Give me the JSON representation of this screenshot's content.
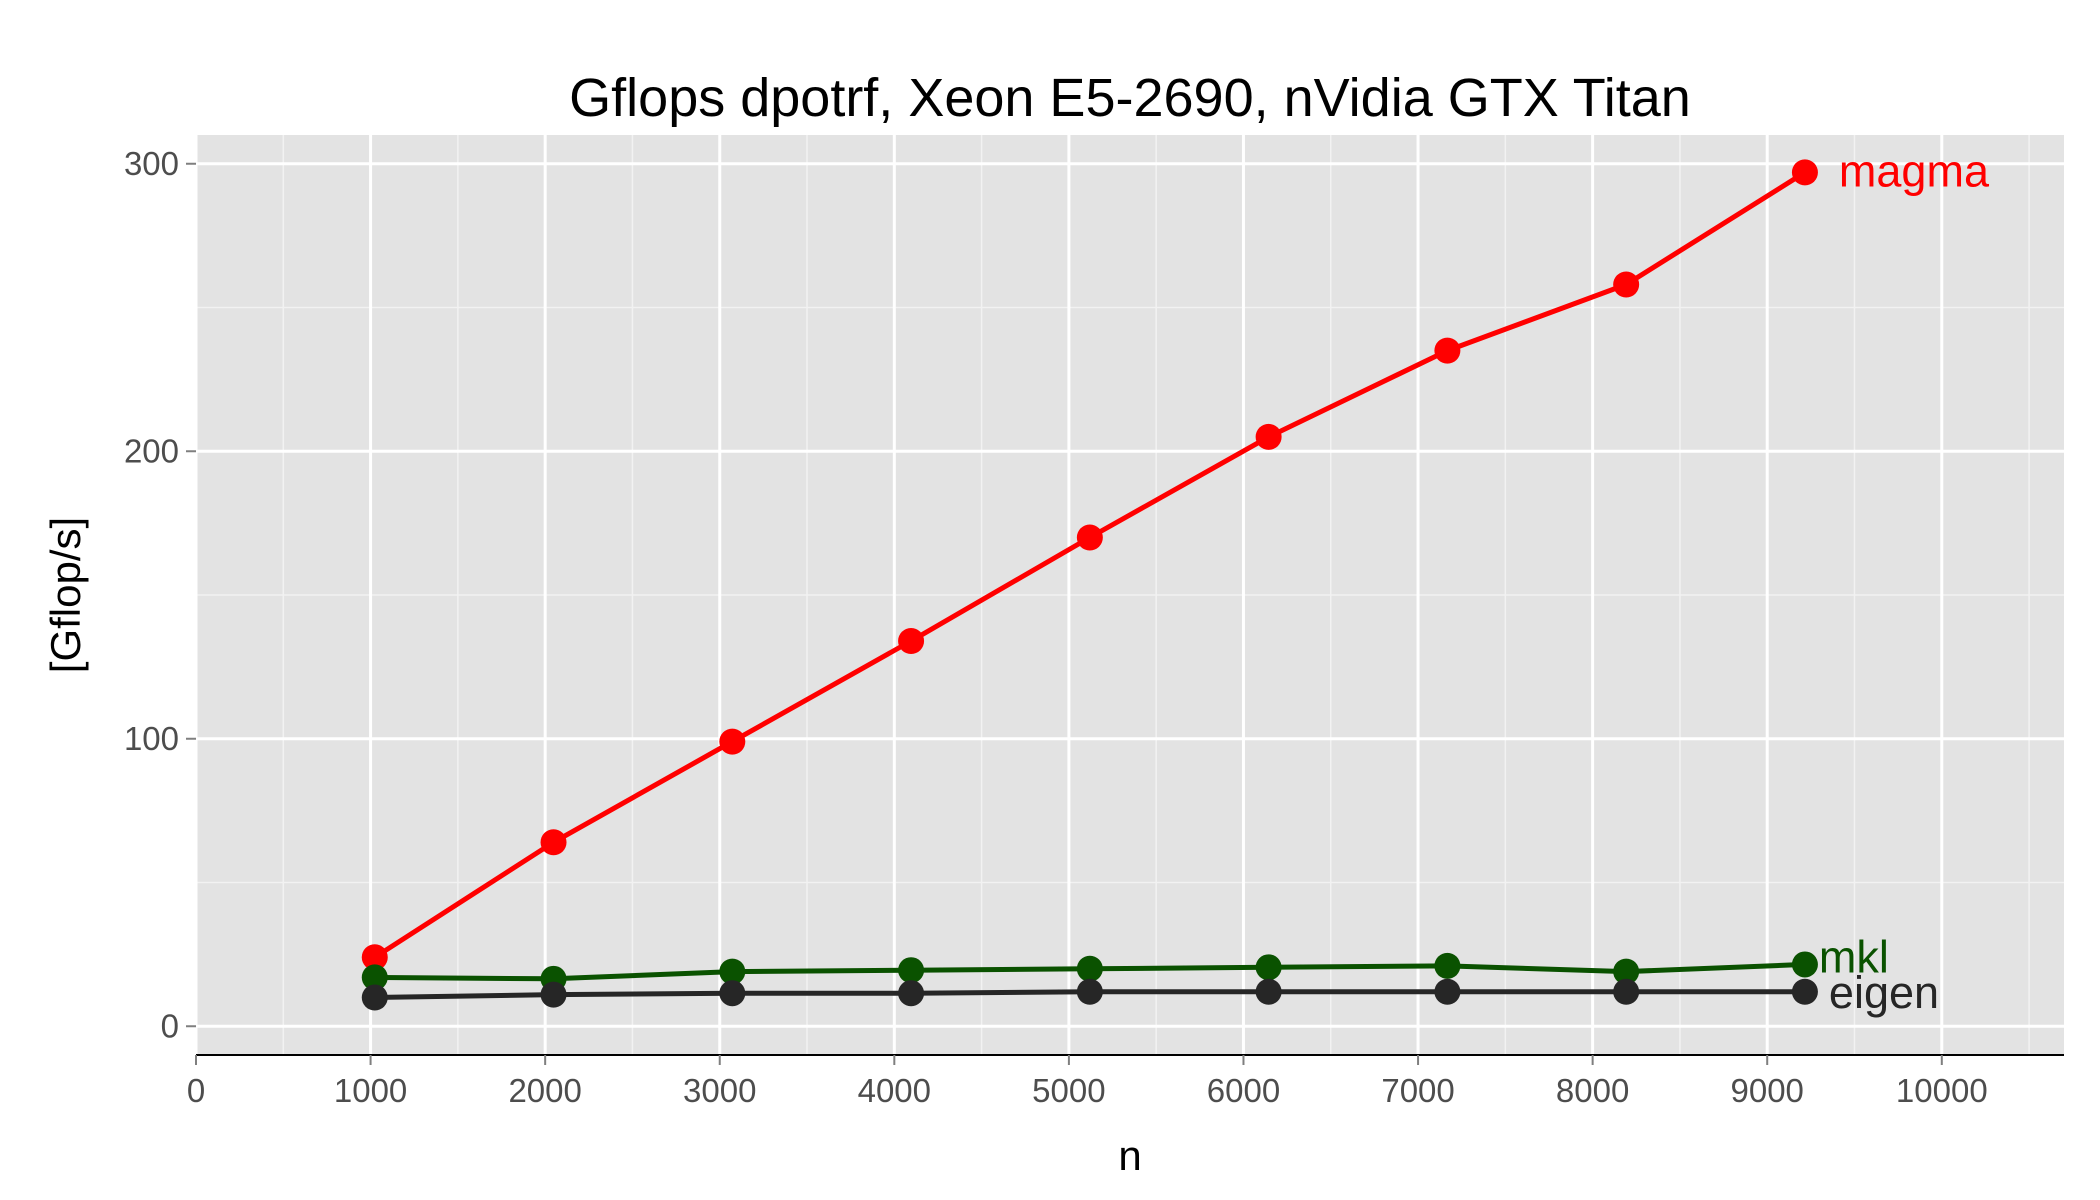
{
  "chart_data": {
    "type": "line",
    "title": "Gflops dpotrf, Xeon E5-2690, nVidia GTX Titan",
    "xlabel": "n",
    "ylabel": "[Gflop/s]",
    "xlim": [
      0,
      10700
    ],
    "ylim": [
      -10,
      310
    ],
    "x_ticks": [
      0,
      1000,
      2000,
      3000,
      4000,
      5000,
      6000,
      7000,
      8000,
      9000,
      10000
    ],
    "y_ticks": [
      0,
      100,
      200,
      300
    ],
    "x_tick_labels": [
      "0",
      "1000",
      "2000",
      "3000",
      "4000",
      "5000",
      "6000",
      "7000",
      "8000",
      "9000",
      "10000"
    ],
    "y_tick_labels": [
      "0",
      "100",
      "200",
      "300"
    ],
    "grid": true,
    "legend": "direct labels at line ends",
    "x": [
      1024,
      2048,
      3072,
      4096,
      5120,
      6144,
      7168,
      8192,
      9216
    ],
    "series": [
      {
        "name": "magma",
        "color": "#ff0000",
        "values": [
          24,
          64,
          99,
          134,
          170,
          205,
          235,
          258,
          297
        ]
      },
      {
        "name": "mkl",
        "color": "#0a5200",
        "values": [
          17,
          16.5,
          19,
          19.5,
          20,
          20.5,
          21,
          19,
          21.5
        ]
      },
      {
        "name": "eigen",
        "color": "#262626",
        "values": [
          10,
          11,
          11.5,
          11.5,
          12,
          12,
          12,
          12,
          12
        ]
      }
    ]
  }
}
